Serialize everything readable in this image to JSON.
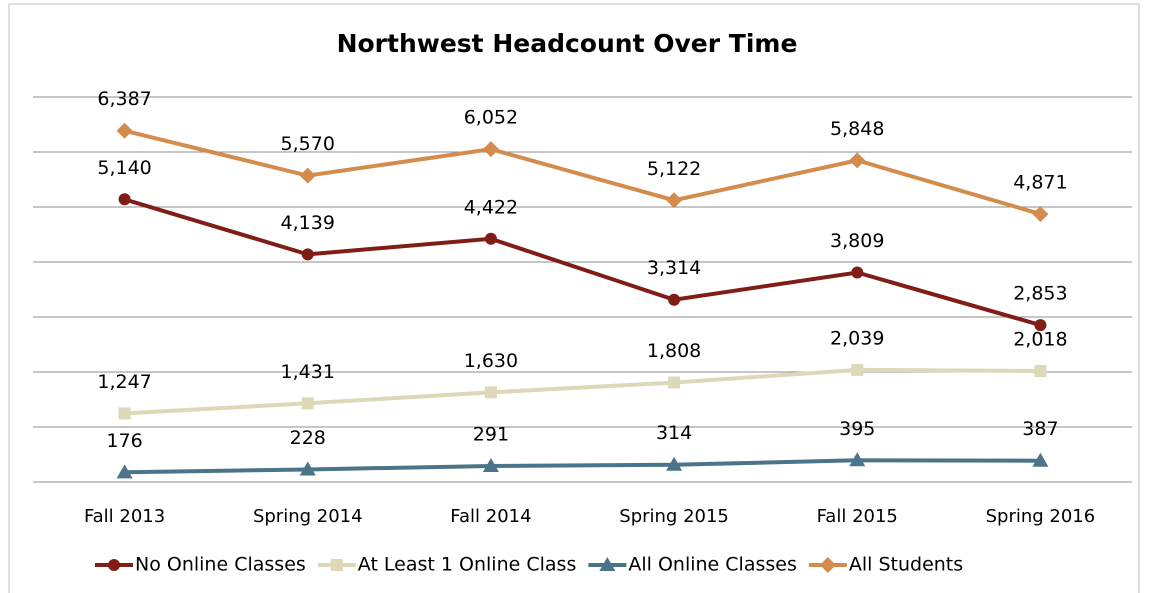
{
  "chart_data": {
    "type": "line",
    "title": "Northwest Headcount Over Time",
    "categories": [
      "Fall 2013",
      "Spring 2014",
      "Fall 2014",
      "Spring 2015",
      "Fall 2015",
      "Spring 2016"
    ],
    "series": [
      {
        "name": "No Online Classes",
        "color": "#7f1d16",
        "marker": "circle",
        "values": [
          5140,
          4139,
          4422,
          3314,
          3809,
          2853
        ],
        "value_labels": [
          "5,140",
          "4,139",
          "4,422",
          "3,314",
          "3,809",
          "2,853"
        ]
      },
      {
        "name": "At Least 1 Online Class",
        "color": "#ddd8b8",
        "marker": "square",
        "values": [
          1247,
          1431,
          1630,
          1808,
          2039,
          2018
        ],
        "value_labels": [
          "1,247",
          "1,431",
          "1,630",
          "1,808",
          "2,039",
          "2,018"
        ]
      },
      {
        "name": "All Online Classes",
        "color": "#4b7389",
        "marker": "triangle",
        "values": [
          176,
          228,
          291,
          314,
          395,
          387
        ],
        "value_labels": [
          "176",
          "228",
          "291",
          "314",
          "395",
          "387"
        ]
      },
      {
        "name": "All Students",
        "color": "#d38c4b",
        "marker": "diamond",
        "values": [
          6387,
          5570,
          6052,
          5122,
          5848,
          4871
        ],
        "value_labels": [
          "6,387",
          "5,570",
          "6,052",
          "5,122",
          "5,848",
          "4,871"
        ]
      }
    ],
    "ylim": [
      0,
      7000
    ],
    "yticks": [
      0,
      1000,
      2000,
      3000,
      4000,
      5000,
      6000,
      7000
    ],
    "grid": true,
    "legend": "bottom"
  }
}
